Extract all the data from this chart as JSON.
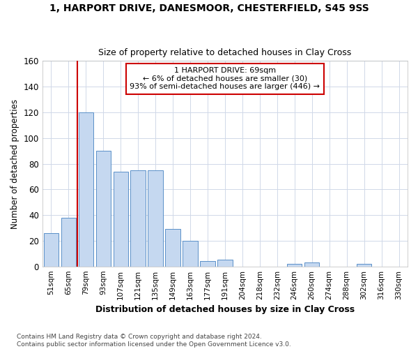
{
  "title1": "1, HARPORT DRIVE, DANESMOOR, CHESTERFIELD, S45 9SS",
  "title2": "Size of property relative to detached houses in Clay Cross",
  "xlabel": "Distribution of detached houses by size in Clay Cross",
  "ylabel": "Number of detached properties",
  "bar_labels": [
    "51sqm",
    "65sqm",
    "79sqm",
    "93sqm",
    "107sqm",
    "121sqm",
    "135sqm",
    "149sqm",
    "163sqm",
    "177sqm",
    "191sqm",
    "204sqm",
    "218sqm",
    "232sqm",
    "246sqm",
    "260sqm",
    "274sqm",
    "288sqm",
    "302sqm",
    "316sqm",
    "330sqm"
  ],
  "bar_values": [
    26,
    38,
    120,
    90,
    74,
    75,
    75,
    29,
    20,
    4,
    5,
    0,
    0,
    0,
    2,
    3,
    0,
    0,
    2,
    0,
    0
  ],
  "bar_color": "#c5d8f0",
  "bar_edge_color": "#5a90c8",
  "grid_color": "#d0d8e8",
  "bg_color": "#ffffff",
  "vline_color": "#cc0000",
  "annotation_line1": "1 HARPORT DRIVE: 69sqm",
  "annotation_line2": "← 6% of detached houses are smaller (30)",
  "annotation_line3": "93% of semi-detached houses are larger (446) →",
  "ann_box_facecolor": "#ffffff",
  "ann_box_edgecolor": "#cc0000",
  "footer_text": "Contains HM Land Registry data © Crown copyright and database right 2024.\nContains public sector information licensed under the Open Government Licence v3.0.",
  "ylim_max": 160,
  "yticks": [
    0,
    20,
    40,
    60,
    80,
    100,
    120,
    140,
    160
  ]
}
